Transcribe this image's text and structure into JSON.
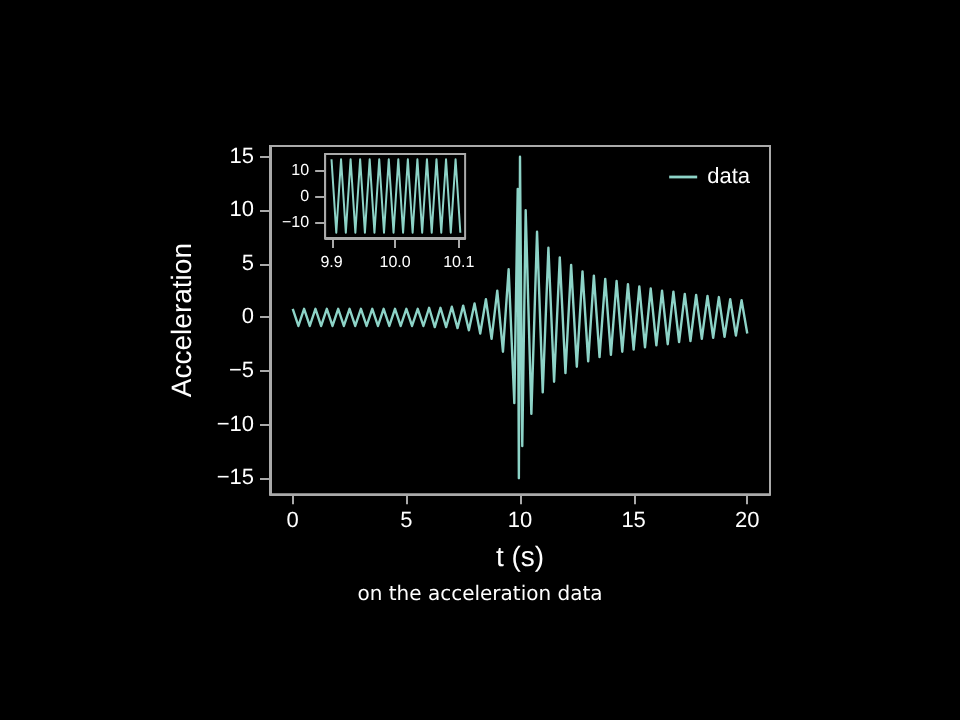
{
  "chart_data": [
    {
      "type": "line",
      "xlabel": "t (s)",
      "ylabel": "Acceleration",
      "legend": "top right",
      "marker": "none",
      "line_style": "solid",
      "grid": false,
      "xlim": [
        -1,
        21
      ],
      "xticks": [
        0,
        5,
        10,
        15,
        20
      ],
      "ylim": [
        -16.5,
        16
      ],
      "yticks": [
        -15,
        -10,
        -5,
        0,
        5,
        10,
        15
      ],
      "annotations": [
        "on the acceleration data"
      ],
      "series": [
        {
          "name": "data",
          "color": "#8dd3c7",
          "x": [
            0,
            0.25,
            0.5,
            0.75,
            1,
            1.25,
            1.5,
            1.75,
            2,
            2.25,
            2.5,
            2.75,
            3,
            3.25,
            3.5,
            3.75,
            4,
            4.25,
            4.5,
            4.75,
            5,
            5.25,
            5.5,
            5.75,
            6,
            6.25,
            6.5,
            6.75,
            7,
            7.25,
            7.5,
            7.75,
            8,
            8.25,
            8.5,
            8.75,
            9,
            9.25,
            9.5,
            9.75,
            9.9,
            9.95,
            10,
            10.1,
            10.25,
            10.5,
            10.75,
            11,
            11.25,
            11.5,
            11.75,
            12,
            12.25,
            12.5,
            12.75,
            13,
            13.25,
            13.5,
            13.75,
            14,
            14.25,
            14.5,
            14.75,
            15,
            15.25,
            15.5,
            15.75,
            16,
            16.25,
            16.5,
            16.75,
            17,
            17.25,
            17.5,
            17.75,
            18,
            18.25,
            18.5,
            18.75,
            19,
            19.25,
            19.5,
            19.75,
            20
          ],
          "values": [
            0.8,
            -0.8,
            0.8,
            -0.8,
            0.8,
            -0.8,
            0.8,
            -0.8,
            0.8,
            -0.8,
            0.8,
            -0.8,
            0.8,
            -0.8,
            0.8,
            -0.8,
            0.8,
            -0.8,
            0.8,
            -0.8,
            0.8,
            -0.8,
            0.8,
            -0.8,
            0.9,
            -0.9,
            0.9,
            -0.9,
            1.0,
            -1.0,
            1.1,
            -1.2,
            1.3,
            -1.5,
            1.7,
            -2,
            2.5,
            -3.2,
            4.5,
            -8,
            12,
            -15,
            15,
            -12,
            10,
            -9,
            8,
            -7,
            6.5,
            -6,
            5.6,
            -5.2,
            4.9,
            -4.6,
            4.3,
            -4.1,
            3.9,
            -3.7,
            3.6,
            -3.5,
            3.4,
            -3.2,
            3.1,
            -3,
            2.9,
            -2.8,
            2.7,
            -2.6,
            2.5,
            -2.5,
            2.4,
            -2.3,
            2.2,
            -2.2,
            2.1,
            -2,
            2,
            -1.9,
            1.9,
            -1.8,
            1.7,
            -1.7,
            1.6,
            -1.5
          ]
        }
      ]
    },
    {
      "type": "line",
      "marker": "none",
      "line_style": "solid",
      "grid": false,
      "xlim": [
        9.89,
        10.11
      ],
      "xticks": [
        9.9,
        {
          "value": 10,
          "label": "10.0"
        },
        10.1
      ],
      "ylim": [
        -16,
        16
      ],
      "yticks": [
        -10,
        0,
        10
      ],
      "series": [
        {
          "color": "#8dd3c7",
          "x": [
            9.9,
            9.9075,
            9.915,
            9.9225,
            9.93,
            9.9375,
            9.945,
            9.9525,
            9.96,
            9.9675,
            9.975,
            9.9825,
            9.99,
            9.9975,
            10.005,
            10.0125,
            10.02,
            10.0275,
            10.035,
            10.0425,
            10.05,
            10.0575,
            10.065,
            10.0725,
            10.08,
            10.0875,
            10.095,
            10.1025
          ],
          "values": [
            14,
            -14,
            14,
            -14,
            14,
            -14,
            14,
            -14,
            14,
            -14,
            14,
            -14,
            14,
            -14,
            14,
            -14,
            14,
            -14,
            14,
            -14,
            14,
            -14,
            14,
            -14,
            14,
            -14,
            14,
            -14
          ]
        }
      ]
    }
  ]
}
